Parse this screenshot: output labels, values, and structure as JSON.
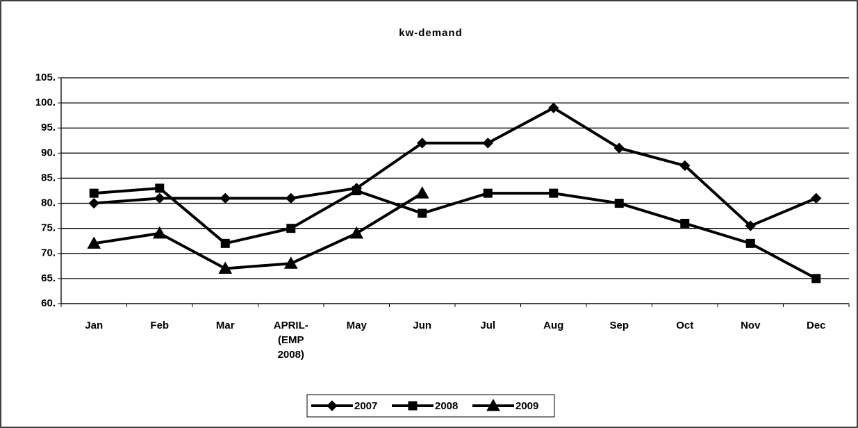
{
  "chart_data": {
    "type": "line",
    "title": "kw-demand",
    "categories": [
      "Jan",
      "Feb",
      "Mar",
      "APRIL- (EMP 2008)",
      "May",
      "Jun",
      "Jul",
      "Aug",
      "Sep",
      "Oct",
      "Nov",
      "Dec"
    ],
    "series": [
      {
        "name": "2007",
        "color": "#000000",
        "marker": "diamond",
        "values": [
          80,
          81,
          81,
          81,
          83,
          92,
          92,
          99,
          91,
          87.5,
          75.5,
          81
        ]
      },
      {
        "name": "2008",
        "color": "#000000",
        "marker": "square",
        "values": [
          82,
          83,
          72,
          75,
          82.5,
          78,
          82,
          82,
          80,
          76,
          72,
          65
        ]
      },
      {
        "name": "2009",
        "color": "#000000",
        "marker": "triangle",
        "values": [
          72,
          74,
          67,
          68,
          74,
          82,
          null,
          null,
          null,
          null,
          null,
          null
        ]
      }
    ],
    "ylim": [
      60,
      105
    ],
    "yticks": [
      {
        "value": 60,
        "label": "60."
      },
      {
        "value": 65,
        "label": "65."
      },
      {
        "value": 70,
        "label": "70."
      },
      {
        "value": 75,
        "label": "75."
      },
      {
        "value": 80,
        "label": "80."
      },
      {
        "value": 85,
        "label": "85."
      },
      {
        "value": 90,
        "label": "90."
      },
      {
        "value": 95,
        "label": "95."
      },
      {
        "value": 100,
        "label": "100."
      },
      {
        "value": 105,
        "label": "105."
      }
    ],
    "grid": true,
    "legend": "bottom"
  }
}
